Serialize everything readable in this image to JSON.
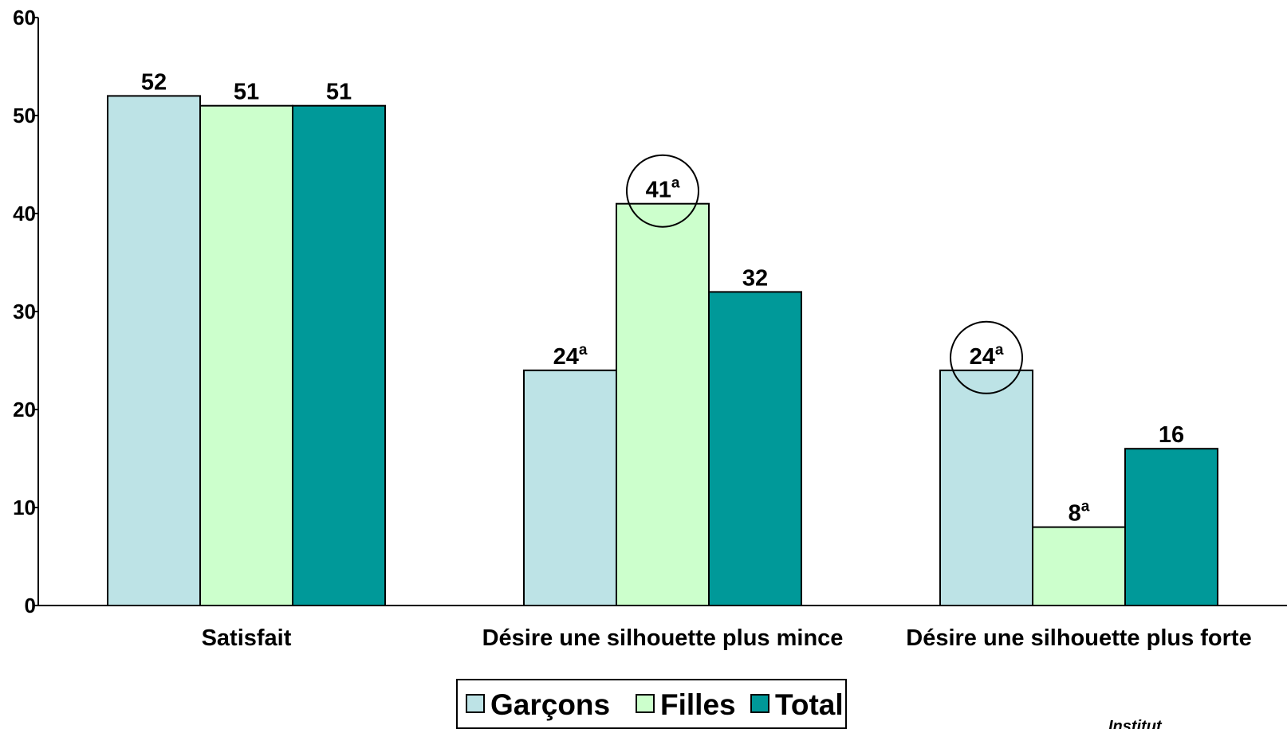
{
  "chart_data": {
    "type": "bar",
    "categories": [
      "Satisfait",
      "Désire une silhouette plus mince",
      "Désire une silhouette plus forte"
    ],
    "series": [
      {
        "name": "Garçons",
        "values": [
          52,
          24,
          24
        ],
        "color": "#bde3e6",
        "labels": [
          "52",
          "24",
          "24"
        ],
        "superscripts": [
          "",
          "a",
          "a"
        ]
      },
      {
        "name": "Filles",
        "values": [
          51,
          41,
          8
        ],
        "color": "#ccffcc",
        "labels": [
          "51",
          "41",
          "8"
        ],
        "superscripts": [
          "",
          "a",
          "a"
        ]
      },
      {
        "name": "Total",
        "values": [
          51,
          32,
          16
        ],
        "color": "#009999",
        "labels": [
          "51",
          "32",
          "16"
        ],
        "superscripts": [
          "",
          "",
          ""
        ]
      }
    ],
    "circled": [
      {
        "series": 1,
        "category": 1
      },
      {
        "series": 0,
        "category": 2
      }
    ],
    "ylim": [
      0,
      60
    ],
    "yticks": [
      "0",
      "10",
      "20",
      "30",
      "40",
      "50",
      "60"
    ],
    "xlabel": "",
    "ylabel": "",
    "legend_position": "bottom-center",
    "grid": false
  },
  "watermark": "Institut"
}
